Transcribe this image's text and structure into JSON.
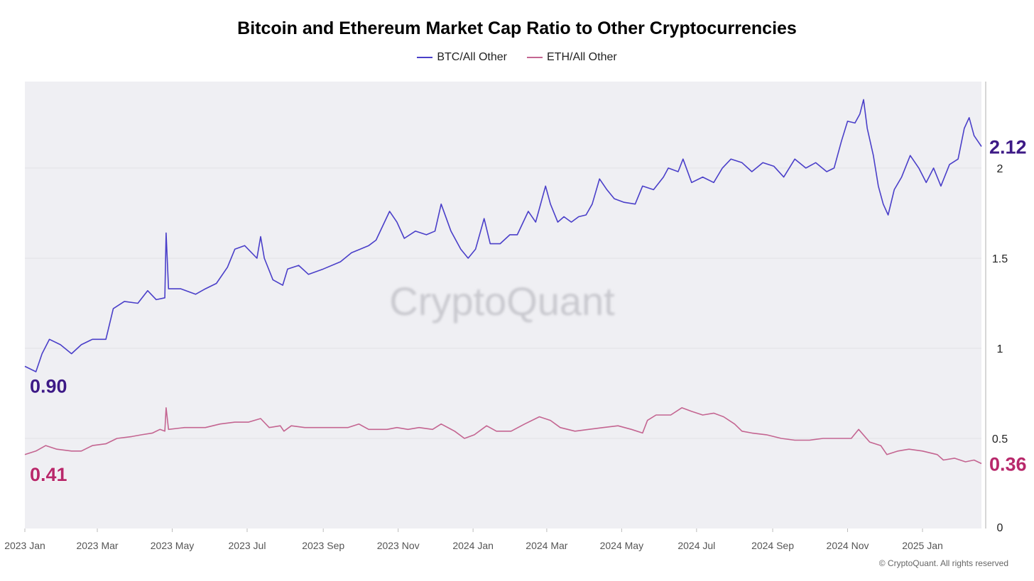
{
  "chart_data": {
    "type": "line",
    "title": "Bitcoin and Ethereum Market Cap Ratio to Other Cryptocurrencies",
    "x_unit": "days since 2023-01-01",
    "xlim": [
      0,
      779
    ],
    "ylim": [
      0,
      2.48
    ],
    "grid": true,
    "legend_position": "top-center",
    "x_ticks": [
      {
        "day": 0,
        "label": "2023 Jan"
      },
      {
        "day": 59,
        "label": "2023 Mar"
      },
      {
        "day": 120,
        "label": "2023 May"
      },
      {
        "day": 181,
        "label": "2023 Jul"
      },
      {
        "day": 243,
        "label": "2023 Sep"
      },
      {
        "day": 304,
        "label": "2023 Nov"
      },
      {
        "day": 365,
        "label": "2024 Jan"
      },
      {
        "day": 425,
        "label": "2024 Mar"
      },
      {
        "day": 486,
        "label": "2024 May"
      },
      {
        "day": 547,
        "label": "2024 Jul"
      },
      {
        "day": 609,
        "label": "2024 Sep"
      },
      {
        "day": 670,
        "label": "2024 Nov"
      },
      {
        "day": 731,
        "label": "2025 Jan"
      }
    ],
    "y_ticks": [
      {
        "v": 0,
        "label": "0"
      },
      {
        "v": 0.5,
        "label": "0.5"
      },
      {
        "v": 1,
        "label": "1"
      },
      {
        "v": 1.5,
        "label": "1.5"
      },
      {
        "v": 2,
        "label": "2"
      }
    ],
    "series": [
      {
        "name": "BTC/All Other",
        "color": "#4a3fc9",
        "label_color": "#3d1a86",
        "start_label": "0.90",
        "end_label": "2.12",
        "points": [
          [
            0,
            0.9
          ],
          [
            9,
            0.87
          ],
          [
            14,
            0.97
          ],
          [
            20,
            1.05
          ],
          [
            29,
            1.02
          ],
          [
            38,
            0.97
          ],
          [
            46,
            1.02
          ],
          [
            55,
            1.05
          ],
          [
            66,
            1.05
          ],
          [
            72,
            1.22
          ],
          [
            81,
            1.26
          ],
          [
            92,
            1.25
          ],
          [
            100,
            1.32
          ],
          [
            107,
            1.27
          ],
          [
            114,
            1.28
          ],
          [
            115,
            1.64
          ],
          [
            117,
            1.33
          ],
          [
            127,
            1.33
          ],
          [
            139,
            1.3
          ],
          [
            147,
            1.33
          ],
          [
            156,
            1.36
          ],
          [
            165,
            1.45
          ],
          [
            171,
            1.55
          ],
          [
            179,
            1.57
          ],
          [
            189,
            1.5
          ],
          [
            192,
            1.62
          ],
          [
            195,
            1.5
          ],
          [
            202,
            1.38
          ],
          [
            210,
            1.35
          ],
          [
            214,
            1.44
          ],
          [
            223,
            1.46
          ],
          [
            231,
            1.41
          ],
          [
            243,
            1.44
          ],
          [
            257,
            1.48
          ],
          [
            266,
            1.53
          ],
          [
            280,
            1.57
          ],
          [
            286,
            1.6
          ],
          [
            297,
            1.76
          ],
          [
            303,
            1.7
          ],
          [
            309,
            1.61
          ],
          [
            318,
            1.65
          ],
          [
            327,
            1.63
          ],
          [
            334,
            1.65
          ],
          [
            339,
            1.8
          ],
          [
            347,
            1.65
          ],
          [
            355,
            1.55
          ],
          [
            361,
            1.5
          ],
          [
            367,
            1.55
          ],
          [
            374,
            1.72
          ],
          [
            379,
            1.58
          ],
          [
            387,
            1.58
          ],
          [
            395,
            1.63
          ],
          [
            401,
            1.63
          ],
          [
            410,
            1.76
          ],
          [
            416,
            1.7
          ],
          [
            424,
            1.9
          ],
          [
            428,
            1.8
          ],
          [
            434,
            1.7
          ],
          [
            439,
            1.73
          ],
          [
            445,
            1.7
          ],
          [
            451,
            1.73
          ],
          [
            457,
            1.74
          ],
          [
            462,
            1.8
          ],
          [
            468,
            1.94
          ],
          [
            474,
            1.88
          ],
          [
            480,
            1.83
          ],
          [
            488,
            1.81
          ],
          [
            497,
            1.8
          ],
          [
            503,
            1.9
          ],
          [
            512,
            1.88
          ],
          [
            520,
            1.95
          ],
          [
            524,
            2.0
          ],
          [
            532,
            1.98
          ],
          [
            536,
            2.05
          ],
          [
            543,
            1.92
          ],
          [
            552,
            1.95
          ],
          [
            561,
            1.92
          ],
          [
            568,
            2.0
          ],
          [
            575,
            2.05
          ],
          [
            584,
            2.03
          ],
          [
            592,
            1.98
          ],
          [
            601,
            2.03
          ],
          [
            610,
            2.01
          ],
          [
            618,
            1.95
          ],
          [
            627,
            2.05
          ],
          [
            636,
            2.0
          ],
          [
            644,
            2.03
          ],
          [
            653,
            1.98
          ],
          [
            659,
            2.0
          ],
          [
            665,
            2.15
          ],
          [
            670,
            2.26
          ],
          [
            676,
            2.25
          ],
          [
            680,
            2.3
          ],
          [
            683,
            2.38
          ],
          [
            686,
            2.22
          ],
          [
            691,
            2.07
          ],
          [
            695,
            1.9
          ],
          [
            699,
            1.8
          ],
          [
            703,
            1.74
          ],
          [
            708,
            1.88
          ],
          [
            714,
            1.95
          ],
          [
            721,
            2.07
          ],
          [
            728,
            2.0
          ],
          [
            734,
            1.92
          ],
          [
            740,
            2.0
          ],
          [
            746,
            1.9
          ],
          [
            753,
            2.02
          ],
          [
            760,
            2.05
          ],
          [
            765,
            2.22
          ],
          [
            769,
            2.28
          ],
          [
            773,
            2.18
          ],
          [
            776,
            2.15
          ],
          [
            779,
            2.12
          ]
        ]
      },
      {
        "name": "ETH/All Other",
        "color": "#c46591",
        "label_color": "#b8286b",
        "start_label": "0.41",
        "end_label": "0.36",
        "points": [
          [
            0,
            0.41
          ],
          [
            9,
            0.43
          ],
          [
            17,
            0.46
          ],
          [
            26,
            0.44
          ],
          [
            38,
            0.43
          ],
          [
            46,
            0.43
          ],
          [
            55,
            0.46
          ],
          [
            66,
            0.47
          ],
          [
            75,
            0.5
          ],
          [
            87,
            0.51
          ],
          [
            95,
            0.52
          ],
          [
            104,
            0.53
          ],
          [
            110,
            0.55
          ],
          [
            114,
            0.54
          ],
          [
            115,
            0.67
          ],
          [
            117,
            0.55
          ],
          [
            130,
            0.56
          ],
          [
            147,
            0.56
          ],
          [
            159,
            0.58
          ],
          [
            171,
            0.59
          ],
          [
            182,
            0.59
          ],
          [
            192,
            0.61
          ],
          [
            199,
            0.56
          ],
          [
            208,
            0.57
          ],
          [
            211,
            0.54
          ],
          [
            217,
            0.57
          ],
          [
            228,
            0.56
          ],
          [
            246,
            0.56
          ],
          [
            263,
            0.56
          ],
          [
            272,
            0.58
          ],
          [
            280,
            0.55
          ],
          [
            295,
            0.55
          ],
          [
            303,
            0.56
          ],
          [
            312,
            0.55
          ],
          [
            321,
            0.56
          ],
          [
            332,
            0.55
          ],
          [
            339,
            0.58
          ],
          [
            350,
            0.54
          ],
          [
            358,
            0.5
          ],
          [
            366,
            0.52
          ],
          [
            376,
            0.57
          ],
          [
            384,
            0.54
          ],
          [
            396,
            0.54
          ],
          [
            407,
            0.58
          ],
          [
            419,
            0.62
          ],
          [
            428,
            0.6
          ],
          [
            436,
            0.56
          ],
          [
            448,
            0.54
          ],
          [
            459,
            0.55
          ],
          [
            471,
            0.56
          ],
          [
            483,
            0.57
          ],
          [
            494,
            0.55
          ],
          [
            503,
            0.53
          ],
          [
            507,
            0.6
          ],
          [
            514,
            0.63
          ],
          [
            526,
            0.63
          ],
          [
            535,
            0.67
          ],
          [
            543,
            0.65
          ],
          [
            552,
            0.63
          ],
          [
            561,
            0.64
          ],
          [
            569,
            0.62
          ],
          [
            578,
            0.58
          ],
          [
            584,
            0.54
          ],
          [
            592,
            0.53
          ],
          [
            604,
            0.52
          ],
          [
            616,
            0.5
          ],
          [
            627,
            0.49
          ],
          [
            639,
            0.49
          ],
          [
            650,
            0.5
          ],
          [
            662,
            0.5
          ],
          [
            673,
            0.5
          ],
          [
            679,
            0.55
          ],
          [
            688,
            0.48
          ],
          [
            697,
            0.46
          ],
          [
            702,
            0.41
          ],
          [
            711,
            0.43
          ],
          [
            720,
            0.44
          ],
          [
            731,
            0.43
          ],
          [
            743,
            0.41
          ],
          [
            748,
            0.38
          ],
          [
            757,
            0.39
          ],
          [
            766,
            0.37
          ],
          [
            773,
            0.38
          ],
          [
            779,
            0.36
          ]
        ]
      }
    ],
    "watermark": "CryptoQuant"
  },
  "footer": {
    "copyright": "© CryptoQuant. All rights reserved"
  }
}
